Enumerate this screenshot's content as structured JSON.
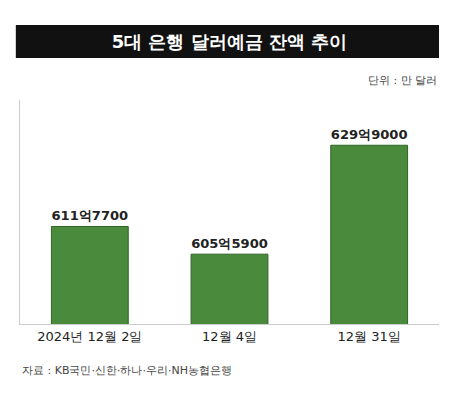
{
  "chart_data": {
    "type": "bar",
    "title": "5대 은행 달러예금 잔액 추이",
    "subtitle": "단위 : 만 달러",
    "source": "자료 : KB국민·신한·하나·우리·NH농협은행",
    "categories": [
      "2024년 12월 2일",
      "12월 4일",
      "12월 31일"
    ],
    "values": [
      6117700,
      6055900,
      6299000
    ],
    "value_labels": [
      "611억7700",
      "605억5900",
      "629억9000"
    ],
    "data_labels": true,
    "color": "#4a8a3c",
    "ylim": [
      5900000,
      6400000
    ],
    "grid": false,
    "tick_labels": "x"
  }
}
